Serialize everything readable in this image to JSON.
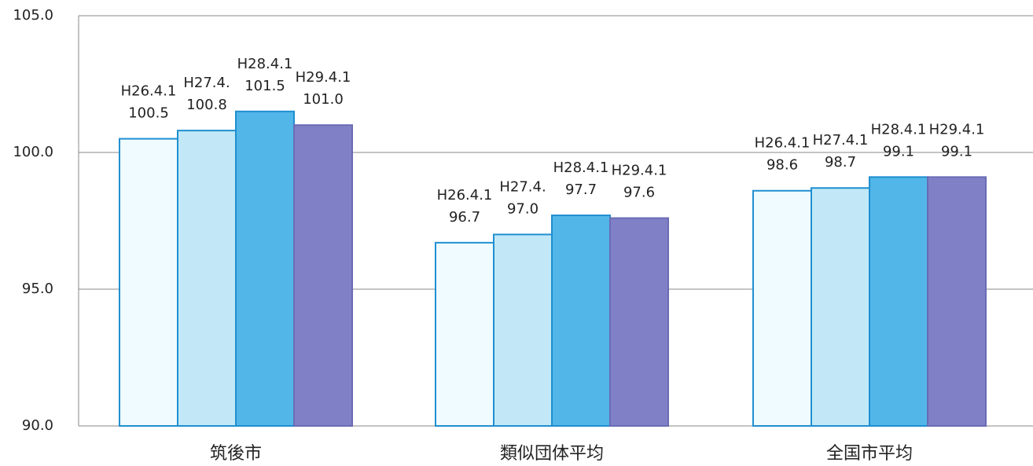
{
  "chart_data": {
    "type": "bar",
    "categories": [
      "筑後市",
      "類似団体平均",
      "全国市平均"
    ],
    "series": [
      {
        "labels": [
          "H26.4.1",
          "H26.4.1",
          "H26.4.1"
        ],
        "color": "#f0fbff",
        "border": "#1f8fd0",
        "values": [
          100.5,
          96.7,
          98.6
        ],
        "value_labels": [
          "100.5",
          "96.7",
          "98.6"
        ]
      },
      {
        "labels": [
          "H27.4.",
          "H27.4.",
          "H27.4.1"
        ],
        "color": "#c2e8f7",
        "border": "#1f8fd0",
        "values": [
          100.8,
          97.0,
          98.7
        ],
        "value_labels": [
          "100.8",
          "97.0",
          "98.7"
        ]
      },
      {
        "labels": [
          "H28.4.1",
          "H28.4.1",
          "H28.4.1"
        ],
        "color": "#52b6e8",
        "border": "#1f8fd0",
        "values": [
          101.5,
          97.7,
          99.1
        ],
        "value_labels": [
          "101.5",
          "97.7",
          "99.1"
        ]
      },
      {
        "labels": [
          "H29.4.1",
          "H29.4.1",
          "H29.4.1"
        ],
        "color": "#7f80c6",
        "border": "#6a6cb5",
        "values": [
          101.0,
          97.6,
          99.1
        ],
        "value_labels": [
          "101.0",
          "97.6",
          "99.1"
        ]
      }
    ],
    "ylim": [
      90,
      105
    ],
    "yticks": [
      {
        "value": 90,
        "label": "90.0"
      },
      {
        "value": 95,
        "label": "95.0"
      },
      {
        "value": 100,
        "label": "100.0"
      },
      {
        "value": 105,
        "label": "105.0"
      }
    ],
    "grid": true
  }
}
